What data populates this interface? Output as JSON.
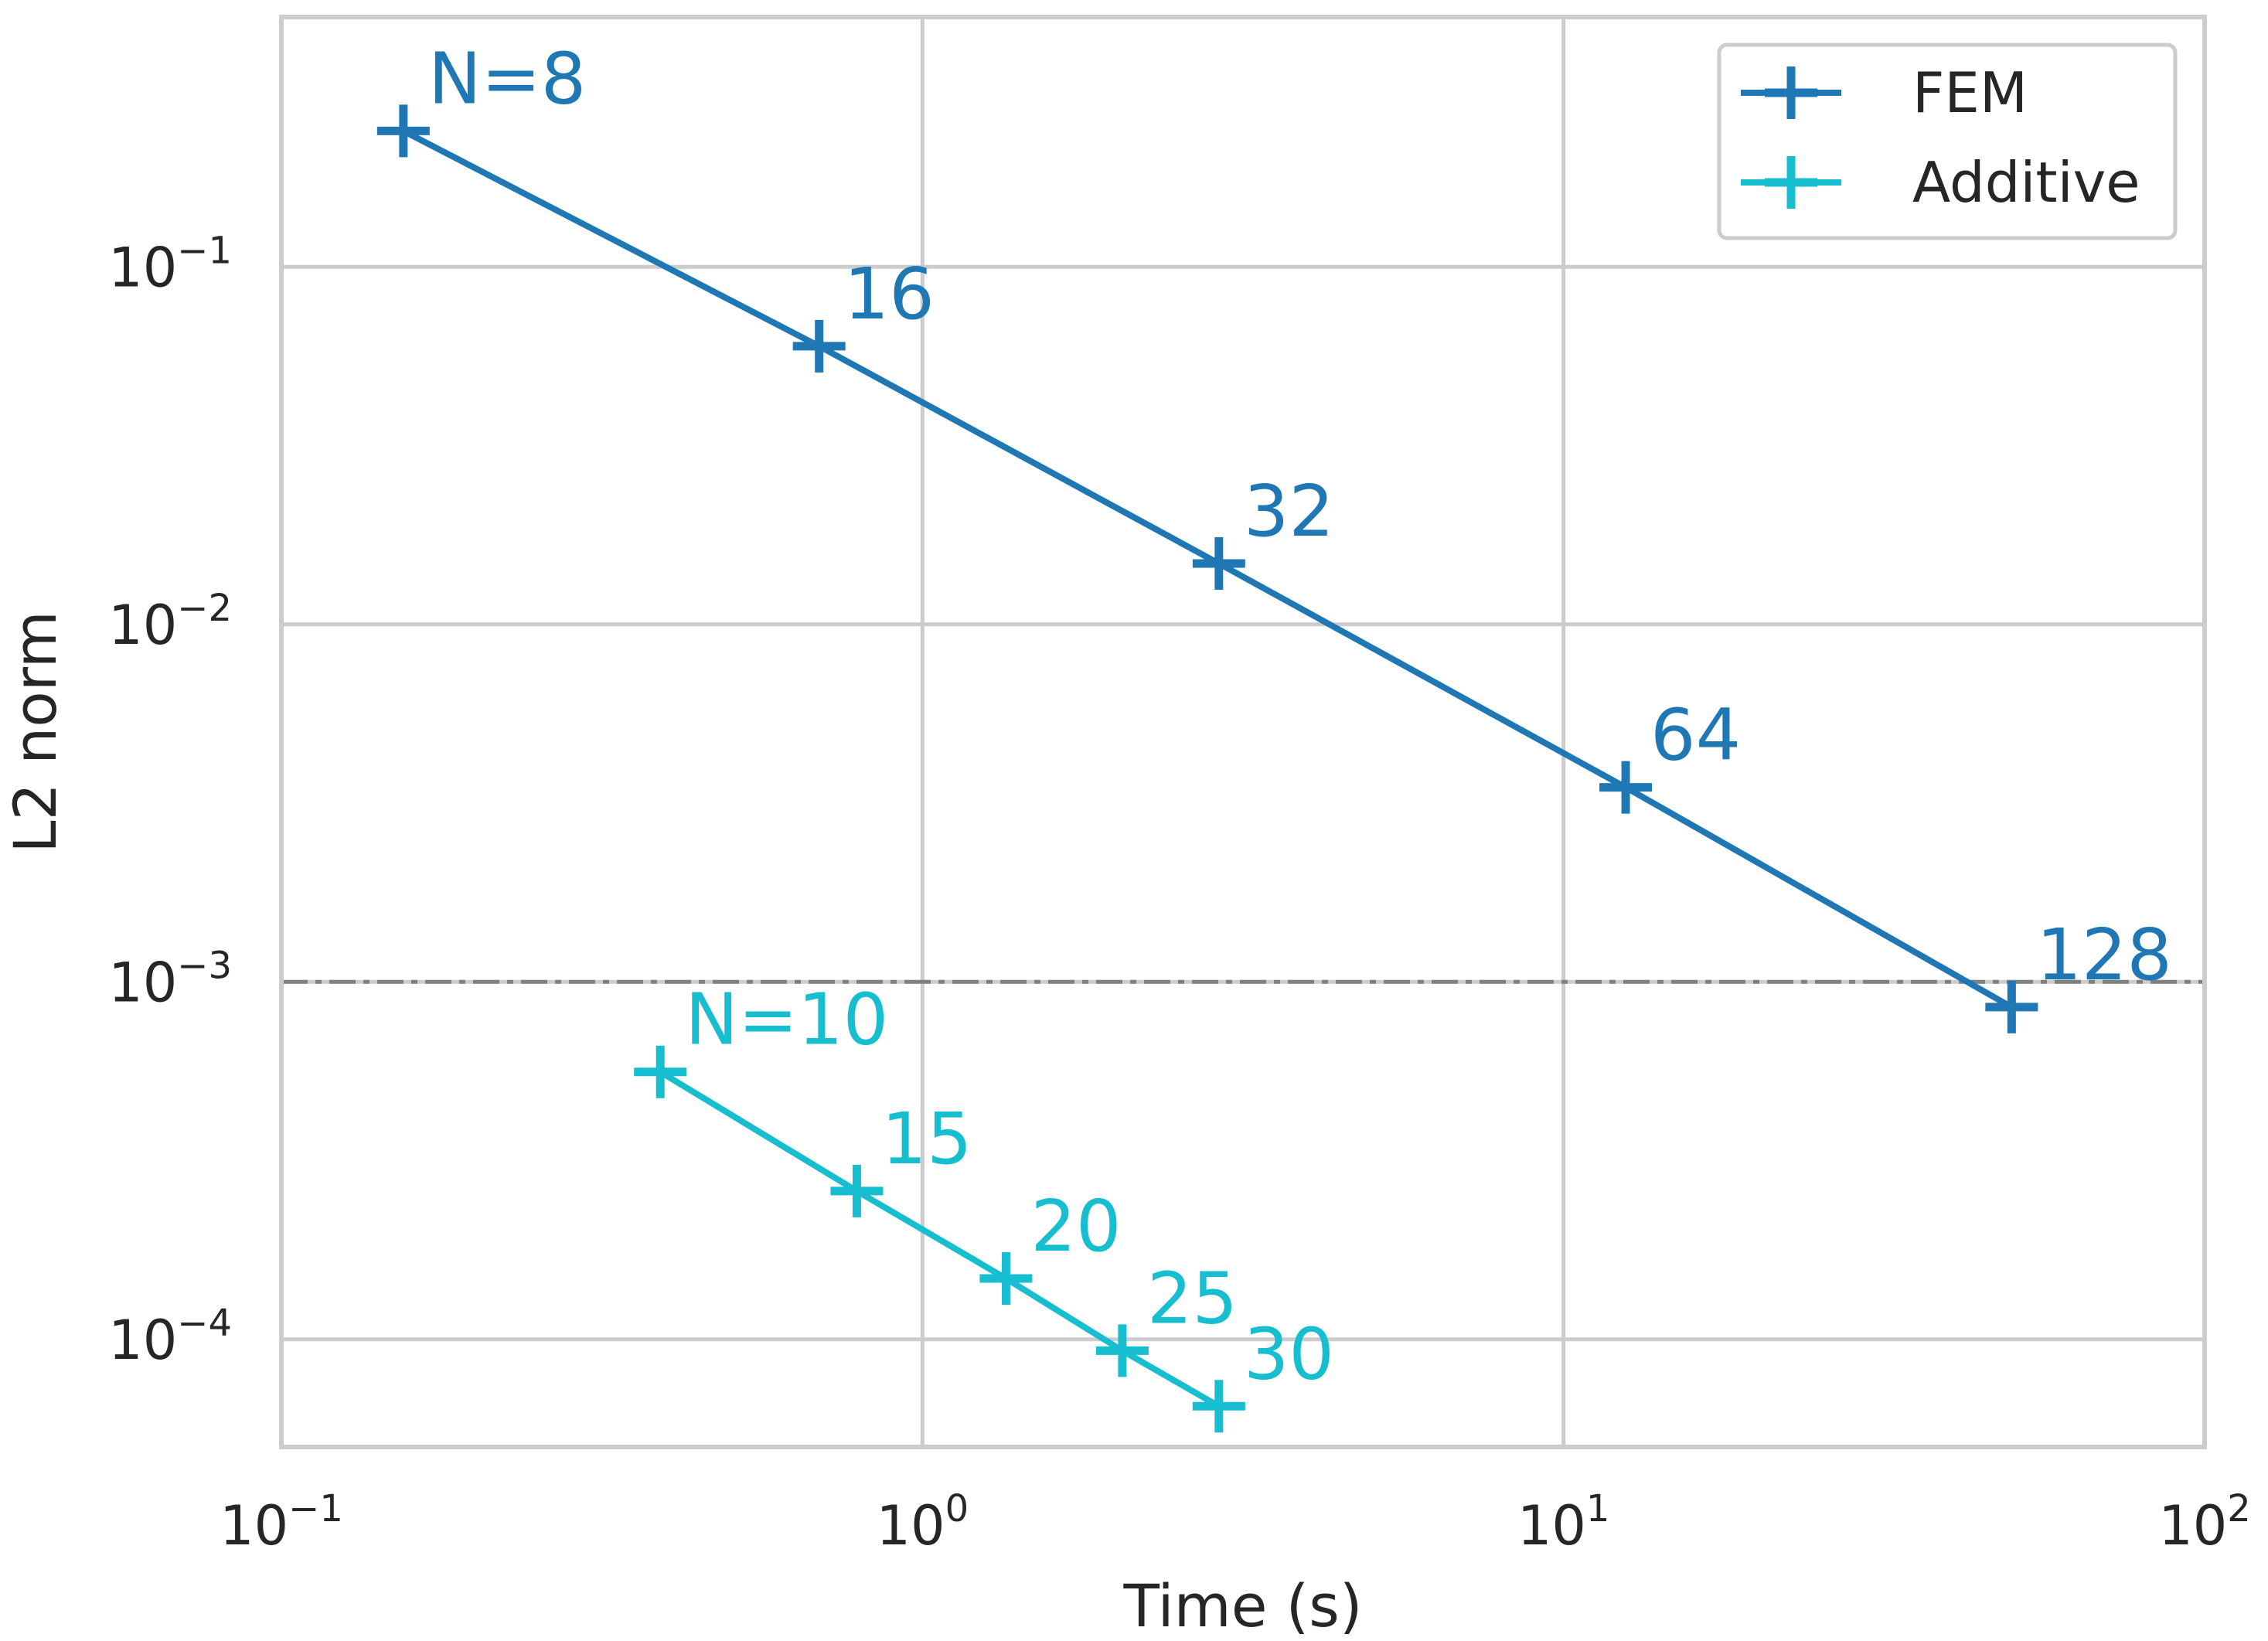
{
  "chart_data": {
    "type": "line",
    "xlabel": "Time (s)",
    "ylabel": "L2 norm",
    "xscale": "log",
    "yscale": "log",
    "xlim": [
      0.1,
      100
    ],
    "ylim": [
      5e-05,
      0.5
    ],
    "grid": true,
    "legend_position": "top-right",
    "x_ticks": [
      {
        "value": 0.1,
        "base": "10",
        "exp": "−1"
      },
      {
        "value": 1,
        "base": "10",
        "exp": "0"
      },
      {
        "value": 10,
        "base": "10",
        "exp": "1"
      },
      {
        "value": 100,
        "base": "10",
        "exp": "2"
      }
    ],
    "y_ticks": [
      {
        "value": 0.1,
        "base": "10",
        "exp": "−1"
      },
      {
        "value": 0.01,
        "base": "10",
        "exp": "−2"
      },
      {
        "value": 0.001,
        "base": "10",
        "exp": "−3"
      },
      {
        "value": 0.0001,
        "base": "10",
        "exp": "−4"
      }
    ],
    "reference_line": {
      "y": 0.001,
      "color": "#808080",
      "style": "dash-dot"
    },
    "series": [
      {
        "name": "FEM",
        "color": "#1f77b4",
        "x": [
          0.155,
          0.69,
          2.9,
          12.5,
          50
        ],
        "y": [
          0.24,
          0.06,
          0.0148,
          0.0035,
          0.00085
        ],
        "labels": [
          "N=8",
          "16",
          "32",
          "64",
          "128"
        ]
      },
      {
        "name": "Additive",
        "color": "#17becf",
        "x": [
          0.39,
          0.79,
          1.35,
          2.05,
          2.9
        ],
        "y": [
          0.00056,
          0.00026,
          0.000148,
          9.3e-05,
          6.5e-05
        ],
        "labels": [
          "N=10",
          "15",
          "20",
          "25",
          "30"
        ]
      }
    ]
  }
}
